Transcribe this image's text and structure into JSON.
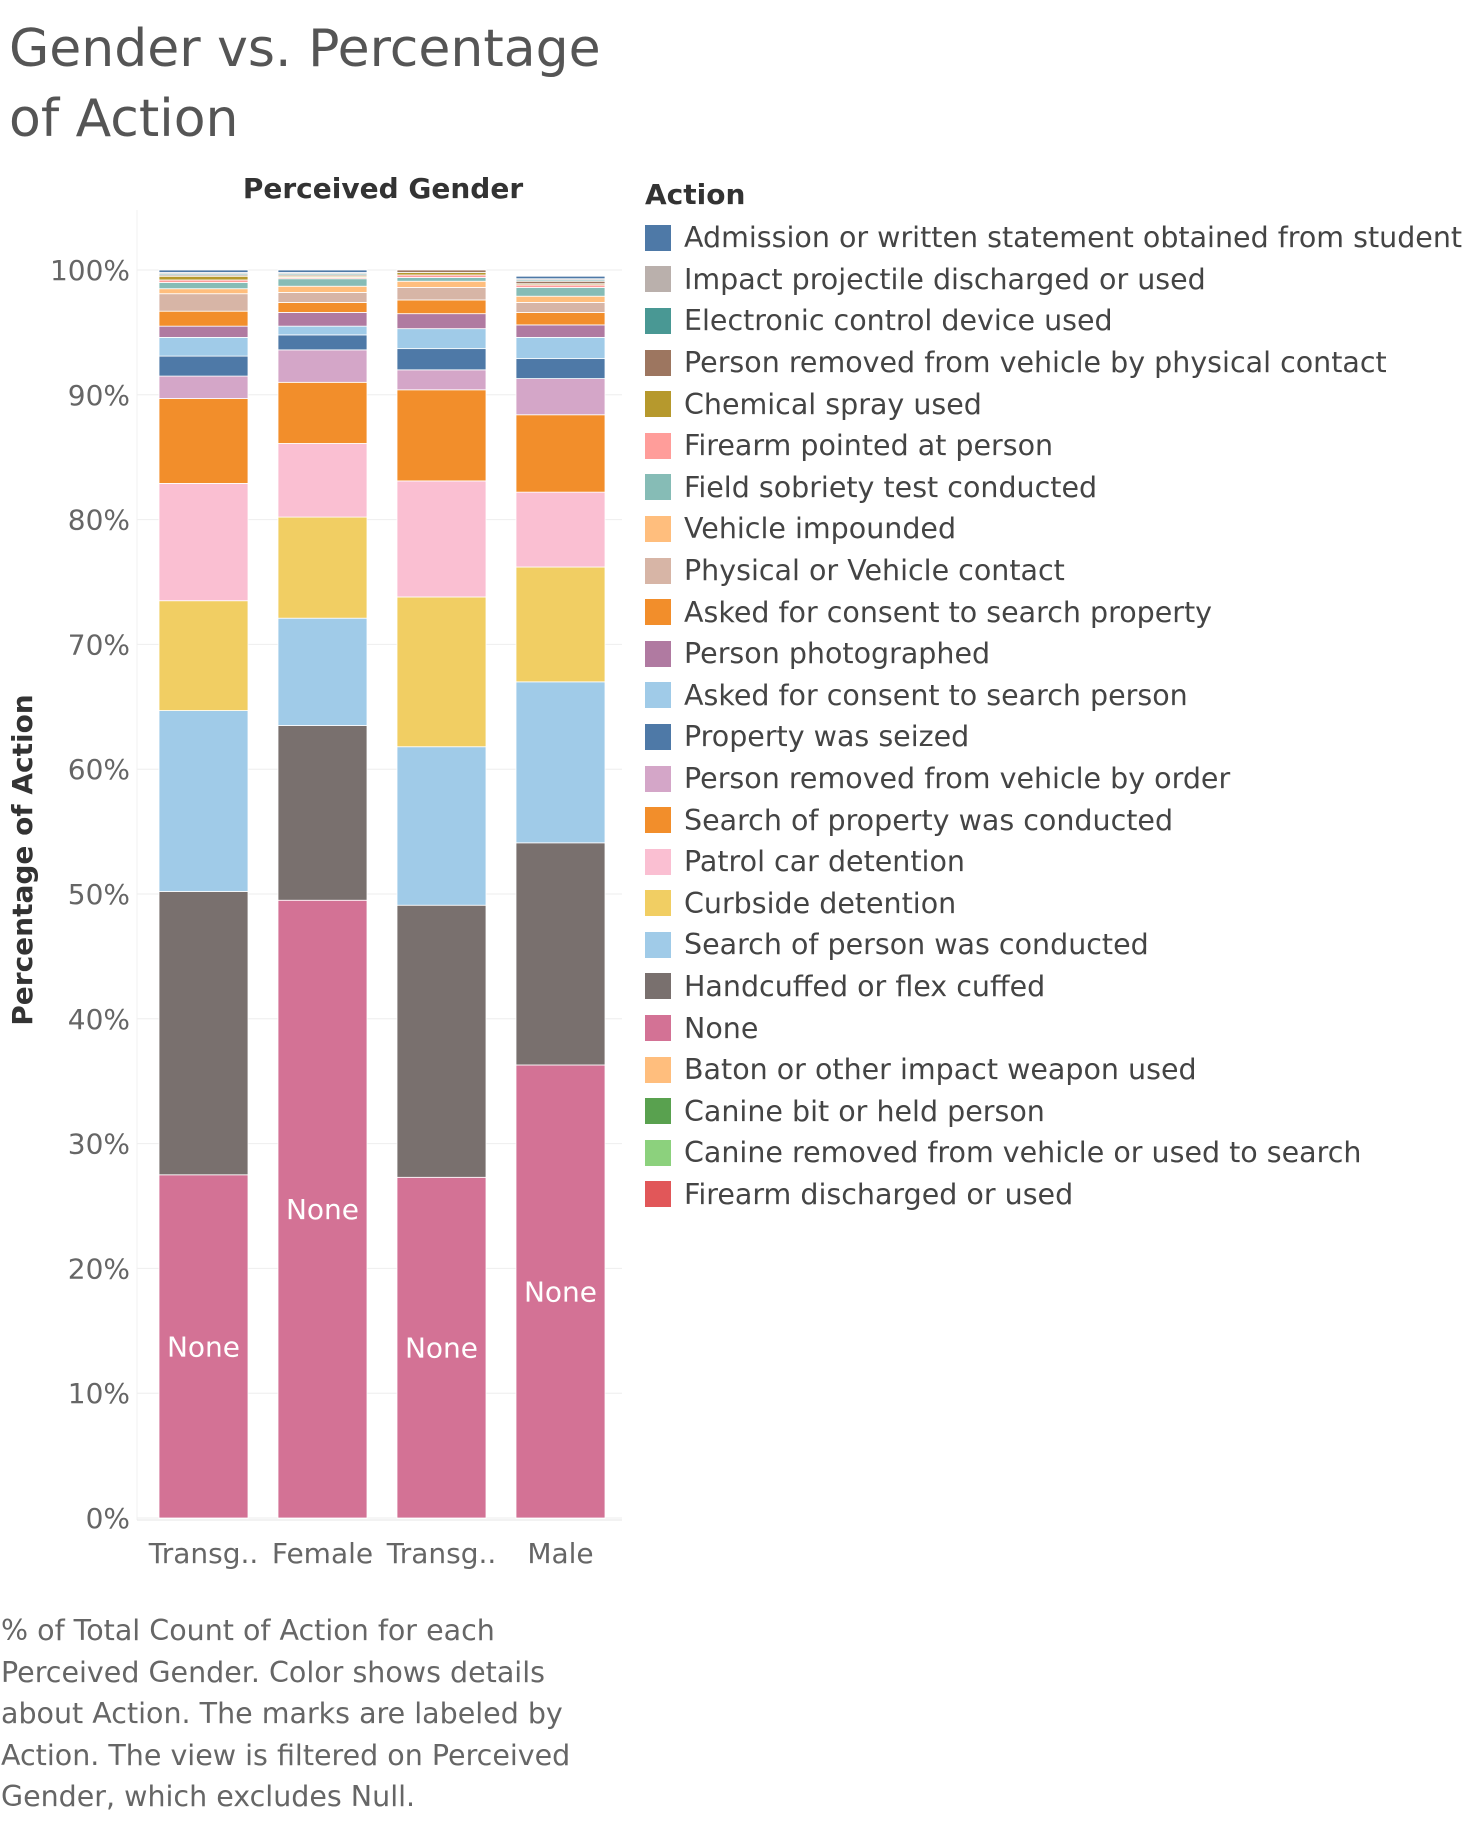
{
  "title": "Gender vs. Percentage of Action",
  "legend": {
    "title": "Action",
    "items": [
      {
        "label": "Admission or written statement obtained from student",
        "color": "#4e79a7"
      },
      {
        "label": "Impact projectile discharged or used",
        "color": "#bab0ac"
      },
      {
        "label": "Electronic control device used",
        "color": "#499894"
      },
      {
        "label": "Person removed from vehicle by physical contact",
        "color": "#9d7660"
      },
      {
        "label": "Chemical spray used",
        "color": "#b6992d"
      },
      {
        "label": "Firearm pointed at person",
        "color": "#ff9d9a"
      },
      {
        "label": "Field sobriety test conducted",
        "color": "#86bcb6"
      },
      {
        "label": "Vehicle impounded",
        "color": "#ffbe7d"
      },
      {
        "label": "Physical or Vehicle contact",
        "color": "#d7b5a6"
      },
      {
        "label": "Asked for consent to search property",
        "color": "#f28e2b"
      },
      {
        "label": "Person photographed",
        "color": "#b07aa1"
      },
      {
        "label": "Asked for consent to search person",
        "color": "#a0cbe8"
      },
      {
        "label": "Property was seized",
        "color": "#4e79a7"
      },
      {
        "label": "Person removed from vehicle by order",
        "color": "#d4a6c8"
      },
      {
        "label": "Search of property was conducted",
        "color": "#f28e2b"
      },
      {
        "label": "Patrol car detention",
        "color": "#fabfd2"
      },
      {
        "label": "Curbside detention",
        "color": "#f1ce63"
      },
      {
        "label": "Search of person was conducted",
        "color": "#a0cbe8"
      },
      {
        "label": "Handcuffed or flex cuffed",
        "color": "#79706e"
      },
      {
        "label": "None",
        "color": "#d37295"
      },
      {
        "label": "Baton or other impact weapon used",
        "color": "#ffbe7d"
      },
      {
        "label": "Canine bit or held person",
        "color": "#59a14f"
      },
      {
        "label": "Canine removed from vehicle or used to search",
        "color": "#8cd17d"
      },
      {
        "label": "Firearm discharged or used",
        "color": "#e15759"
      }
    ]
  },
  "caption": "% of Total Count of Action for each Perceived Gender.  Color shows details about Action.  The marks are labeled by Action. The view is filtered on Perceived Gender, which excludes Null.",
  "chart_data": {
    "type": "bar",
    "stacked": true,
    "title": "Gender vs. Percentage of Action",
    "column_header": "Perceived Gender",
    "xlabel": "",
    "ylabel": "Percentage of Action",
    "ylim": [
      0,
      100
    ],
    "yticks": [
      "0%",
      "10%",
      "20%",
      "30%",
      "40%",
      "50%",
      "60%",
      "70%",
      "80%",
      "90%",
      "100%"
    ],
    "categories": [
      "Transg..",
      "Female",
      "Transg..",
      "Male"
    ],
    "mark_label": "None",
    "series": [
      {
        "name": "None",
        "color": "#d37295",
        "values": [
          27.5,
          49.5,
          27.3,
          36.3
        ]
      },
      {
        "name": "Handcuffed or flex cuffed",
        "color": "#79706e",
        "values": [
          22.7,
          14.0,
          21.8,
          17.8
        ]
      },
      {
        "name": "Search of person was conducted",
        "color": "#a0cbe8",
        "values": [
          14.5,
          8.6,
          12.7,
          12.9
        ]
      },
      {
        "name": "Curbside detention",
        "color": "#f1ce63",
        "values": [
          8.8,
          8.1,
          12.0,
          9.2
        ]
      },
      {
        "name": "Patrol car detention",
        "color": "#fabfd2",
        "values": [
          9.4,
          5.9,
          9.3,
          6.0
        ]
      },
      {
        "name": "Search of property was conducted",
        "color": "#f28e2b",
        "values": [
          6.8,
          4.9,
          7.3,
          6.2
        ]
      },
      {
        "name": "Person removed from vehicle by order",
        "color": "#d4a6c8",
        "values": [
          1.8,
          2.6,
          1.6,
          2.9
        ]
      },
      {
        "name": "Property was seized",
        "color": "#4e79a7",
        "values": [
          1.6,
          1.2,
          1.7,
          1.6
        ]
      },
      {
        "name": "Asked for consent to search person",
        "color": "#a0cbe8",
        "values": [
          1.5,
          0.7,
          1.6,
          1.7
        ]
      },
      {
        "name": "Person photographed",
        "color": "#b07aa1",
        "values": [
          0.9,
          1.1,
          1.2,
          1.0
        ]
      },
      {
        "name": "Asked for consent to search property",
        "color": "#f28e2b",
        "values": [
          1.2,
          0.8,
          1.1,
          1.0
        ]
      },
      {
        "name": "Physical or Vehicle contact",
        "color": "#d7b5a6",
        "values": [
          1.4,
          0.8,
          1.0,
          0.8
        ]
      },
      {
        "name": "Vehicle impounded",
        "color": "#ffbe7d",
        "values": [
          0.4,
          0.5,
          0.5,
          0.5
        ]
      },
      {
        "name": "Field sobriety test conducted",
        "color": "#86bcb6",
        "values": [
          0.5,
          0.6,
          0.3,
          0.7
        ]
      },
      {
        "name": "Firearm pointed at person",
        "color": "#ff9d9a",
        "values": [
          0.2,
          0.1,
          0.2,
          0.2
        ]
      },
      {
        "name": "Chemical spray used",
        "color": "#b6992d",
        "values": [
          0.3,
          0.1,
          0.2,
          0.1
        ]
      },
      {
        "name": "Person removed from vehicle by physical contact",
        "color": "#9d7660",
        "values": [
          0.1,
          0.1,
          0.2,
          0.2
        ]
      },
      {
        "name": "Electronic control device used",
        "color": "#499894",
        "values": [
          0.1,
          0.1,
          0.0,
          0.1
        ]
      },
      {
        "name": "Impact projectile discharged or used",
        "color": "#bab0ac",
        "values": [
          0.1,
          0.1,
          0.0,
          0.1
        ]
      },
      {
        "name": "Admission or written statement obtained from student",
        "color": "#4e79a7",
        "values": [
          0.2,
          0.2,
          0.0,
          0.2
        ]
      }
    ]
  }
}
